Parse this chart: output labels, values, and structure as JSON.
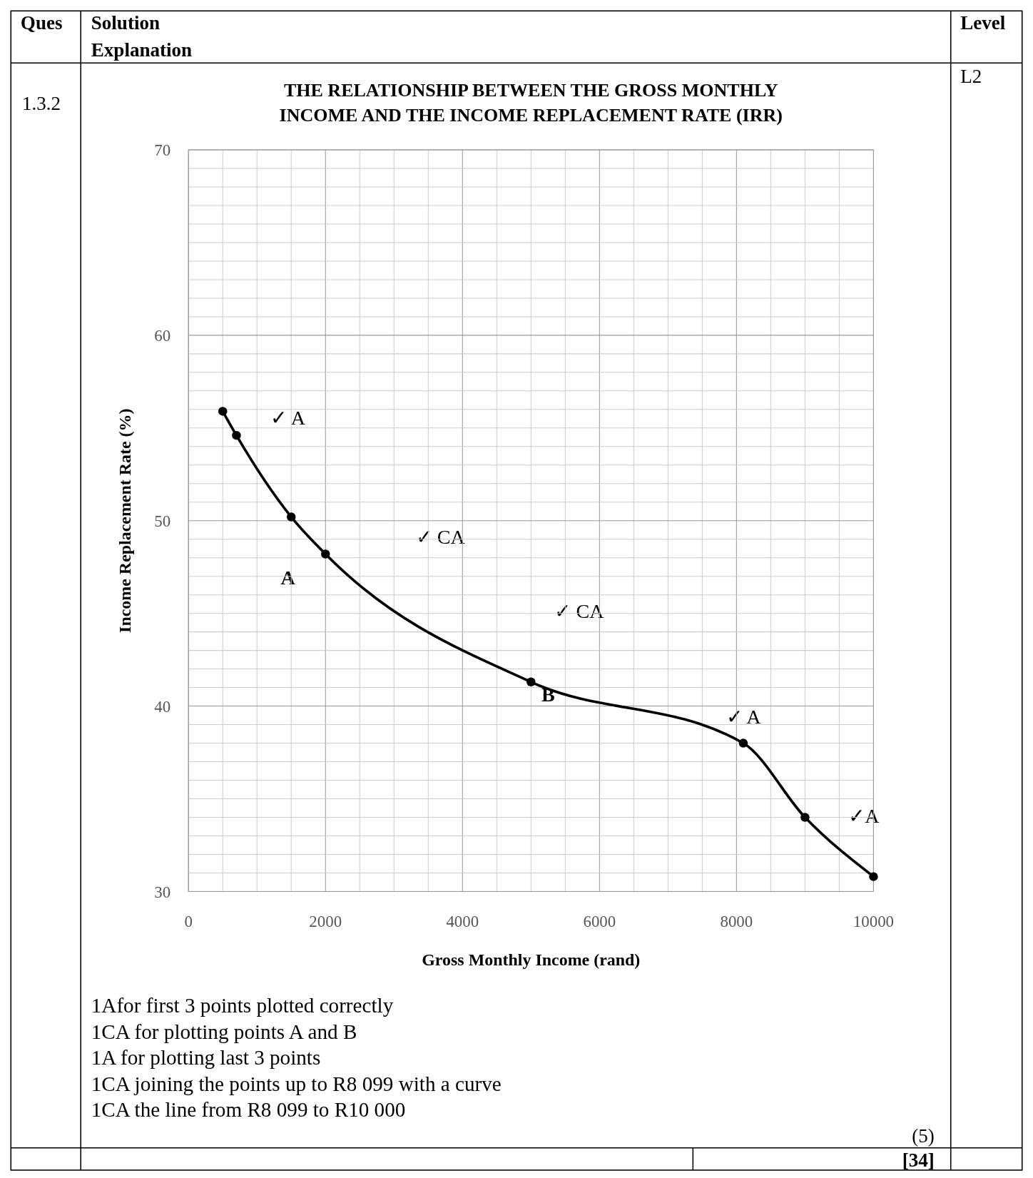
{
  "chart_data": {
    "type": "line",
    "title": "THE RELATIONSHIP BETWEEN THE GROSS MONTHLY INCOME AND THE INCOME REPLACEMENT RATE (IRR)",
    "xlabel": "Gross Monthly Income (rand)",
    "ylabel": "Income Replacement Rate (%)",
    "x": [
      500,
      700,
      1500,
      2000,
      5000,
      8099,
      9000,
      10000
    ],
    "series": [
      {
        "color": "#000000",
        "values": [
          55.9,
          54.6,
          50.2,
          48.2,
          41.3,
          38.0,
          34.0,
          30.8
        ]
      }
    ],
    "xlim": [
      0,
      10000
    ],
    "xticks": [
      0,
      {
        "value": 500,
        "label": null
      },
      {
        "value": 1000,
        "label": null
      },
      {
        "value": 1500,
        "label": null
      },
      2000,
      {
        "value": 2500,
        "label": null
      },
      {
        "value": 3000,
        "label": null
      },
      {
        "value": 3500,
        "label": null
      },
      4000,
      {
        "value": 4500,
        "label": null
      },
      {
        "value": 5000,
        "label": null
      },
      {
        "value": 5500,
        "label": null
      },
      6000,
      {
        "value": 6500,
        "label": null
      },
      {
        "value": 7000,
        "label": null
      },
      {
        "value": 7500,
        "label": null
      },
      8000,
      {
        "value": 8500,
        "label": null
      },
      {
        "value": 9000,
        "label": null
      },
      {
        "value": 9500,
        "label": null
      },
      10000
    ],
    "ylim": [
      30,
      70
    ],
    "yticks": [
      30,
      {
        "value": 31,
        "label": null
      },
      {
        "value": 32,
        "label": null
      },
      {
        "value": 33,
        "label": null
      },
      {
        "value": 34,
        "label": null
      },
      {
        "value": 35,
        "label": null
      },
      {
        "value": 36,
        "label": null
      },
      {
        "value": 37,
        "label": null
      },
      {
        "value": 38,
        "label": null
      },
      {
        "value": 39,
        "label": null
      },
      40,
      {
        "value": 41,
        "label": null
      },
      {
        "value": 42,
        "label": null
      },
      {
        "value": 43,
        "label": null
      },
      {
        "value": 44,
        "label": null
      },
      {
        "value": 45,
        "label": null
      },
      {
        "value": 46,
        "label": null
      },
      {
        "value": 47,
        "label": null
      },
      {
        "value": 48,
        "label": null
      },
      {
        "value": 49,
        "label": null
      },
      50,
      {
        "value": 51,
        "label": null
      },
      {
        "value": 52,
        "label": null
      },
      {
        "value": 53,
        "label": null
      },
      {
        "value": 54,
        "label": null
      },
      {
        "value": 55,
        "label": null
      },
      {
        "value": 56,
        "label": null
      },
      {
        "value": 57,
        "label": null
      },
      {
        "value": 58,
        "label": null
      },
      {
        "value": 59,
        "label": null
      },
      60,
      {
        "value": 61,
        "label": null
      },
      {
        "value": 62,
        "label": null
      },
      {
        "value": 63,
        "label": null
      },
      {
        "value": 64,
        "label": null
      },
      {
        "value": 65,
        "label": null
      },
      {
        "value": 66,
        "label": null
      },
      {
        "value": 67,
        "label": null
      },
      {
        "value": 68,
        "label": null
      },
      {
        "value": 69,
        "label": null
      },
      70
    ],
    "grid": true,
    "marker": "circle",
    "line_style": "solid",
    "annotations": [
      "Ques",
      "Solution Explanation",
      "Level",
      "1.3.2",
      "L2",
      "1Afor first 3 points plotted correctly",
      "1CA for plotting points A and B",
      "1A for plotting last 3 points",
      "1CA joining the points up to R8 099 with a curve",
      "1CA the line from R8 099 to R10 000",
      "(5)",
      "[34]",
      "✓ A",
      "✓ CA",
      "✓ CA",
      "✓ A",
      "✓A",
      "A",
      "B"
    ]
  }
}
